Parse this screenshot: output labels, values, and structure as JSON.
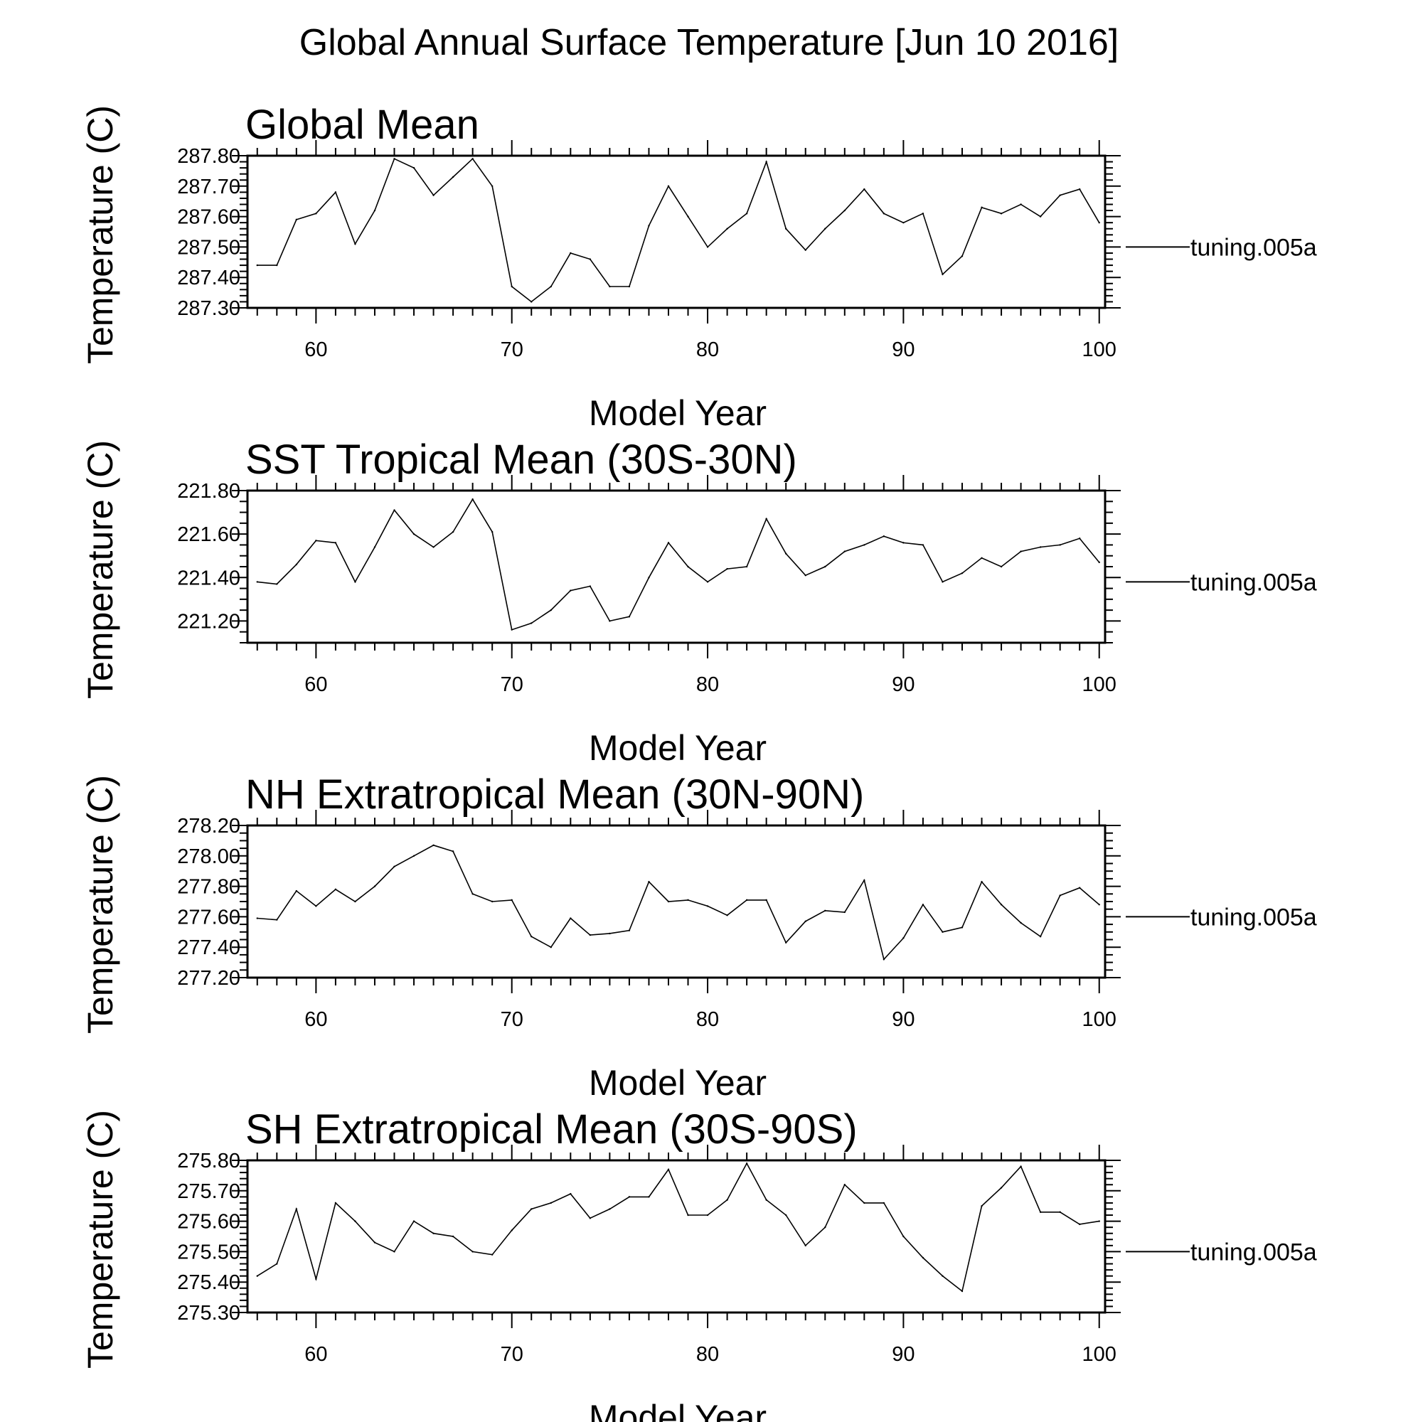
{
  "page_title": "Global Annual Surface Temperature [Jun 10 2016]",
  "chart_data": [
    {
      "type": "line",
      "title": "Global Mean",
      "xlabel": "Model Year",
      "ylabel": "Temperature (C)",
      "xlim": [
        56.5,
        100.3
      ],
      "ylim": [
        287.3,
        287.8
      ],
      "xticks": [
        60,
        70,
        80,
        90,
        100
      ],
      "yticks": [
        287.3,
        287.4,
        287.5,
        287.6,
        287.7,
        287.8
      ],
      "ytick_labels": [
        "287.30",
        "287.40",
        "287.50",
        "287.60",
        "287.70",
        "287.80"
      ],
      "legend_value": 287.5,
      "series": [
        {
          "name": "tuning.005a",
          "x": [
            57,
            58,
            59,
            60,
            61,
            62,
            63,
            64,
            65,
            66,
            67,
            68,
            69,
            70,
            71,
            72,
            73,
            74,
            75,
            76,
            77,
            78,
            79,
            80,
            81,
            82,
            83,
            84,
            85,
            86,
            87,
            88,
            89,
            90,
            91,
            92,
            93,
            94,
            95,
            96,
            97,
            98,
            99,
            100
          ],
          "values": [
            287.44,
            287.44,
            287.59,
            287.61,
            287.68,
            287.51,
            287.62,
            287.79,
            287.76,
            287.67,
            287.73,
            287.79,
            287.7,
            287.37,
            287.32,
            287.37,
            287.48,
            287.46,
            287.37,
            287.37,
            287.57,
            287.7,
            287.6,
            287.5,
            287.56,
            287.61,
            287.78,
            287.56,
            287.49,
            287.56,
            287.62,
            287.69,
            287.61,
            287.58,
            287.61,
            287.41,
            287.47,
            287.63,
            287.61,
            287.64,
            287.6,
            287.67,
            287.69,
            287.58
          ]
        }
      ]
    },
    {
      "type": "line",
      "title": "SST Tropical Mean (30S-30N)",
      "xlabel": "Model Year",
      "ylabel": "Temperature (C)",
      "xlim": [
        56.5,
        100.3
      ],
      "ylim": [
        221.1,
        221.8
      ],
      "xticks": [
        60,
        70,
        80,
        90,
        100
      ],
      "yticks": [
        221.2,
        221.4,
        221.6,
        221.8
      ],
      "ytick_labels": [
        "221.20",
        "221.40",
        "221.60",
        "221.80"
      ],
      "legend_value": 221.38,
      "series": [
        {
          "name": "tuning.005a",
          "x": [
            57,
            58,
            59,
            60,
            61,
            62,
            63,
            64,
            65,
            66,
            67,
            68,
            69,
            70,
            71,
            72,
            73,
            74,
            75,
            76,
            77,
            78,
            79,
            80,
            81,
            82,
            83,
            84,
            85,
            86,
            87,
            88,
            89,
            90,
            91,
            92,
            93,
            94,
            95,
            96,
            97,
            98,
            99,
            100
          ],
          "values": [
            221.38,
            221.37,
            221.46,
            221.57,
            221.56,
            221.38,
            221.54,
            221.71,
            221.6,
            221.54,
            221.61,
            221.76,
            221.61,
            221.16,
            221.19,
            221.25,
            221.34,
            221.36,
            221.2,
            221.22,
            221.4,
            221.56,
            221.45,
            221.38,
            221.44,
            221.45,
            221.67,
            221.51,
            221.41,
            221.45,
            221.52,
            221.55,
            221.59,
            221.56,
            221.55,
            221.38,
            221.42,
            221.49,
            221.45,
            221.52,
            221.54,
            221.55,
            221.58,
            221.47
          ]
        }
      ]
    },
    {
      "type": "line",
      "title": "NH Extratropical Mean (30N-90N)",
      "xlabel": "Model Year",
      "ylabel": "Temperature (C)",
      "xlim": [
        56.5,
        100.3
      ],
      "ylim": [
        277.2,
        278.2
      ],
      "xticks": [
        60,
        70,
        80,
        90,
        100
      ],
      "yticks": [
        277.2,
        277.4,
        277.6,
        277.8,
        278.0,
        278.2
      ],
      "ytick_labels": [
        "277.20",
        "277.40",
        "277.60",
        "277.80",
        "278.00",
        "278.20"
      ],
      "legend_value": 277.6,
      "series": [
        {
          "name": "tuning.005a",
          "x": [
            57,
            58,
            59,
            60,
            61,
            62,
            63,
            64,
            65,
            66,
            67,
            68,
            69,
            70,
            71,
            72,
            73,
            74,
            75,
            76,
            77,
            78,
            79,
            80,
            81,
            82,
            83,
            84,
            85,
            86,
            87,
            88,
            89,
            90,
            91,
            92,
            93,
            94,
            95,
            96,
            97,
            98,
            99,
            100
          ],
          "values": [
            277.59,
            277.58,
            277.77,
            277.67,
            277.78,
            277.7,
            277.8,
            277.93,
            278.0,
            278.07,
            278.03,
            277.75,
            277.7,
            277.71,
            277.47,
            277.4,
            277.59,
            277.48,
            277.49,
            277.51,
            277.83,
            277.7,
            277.71,
            277.67,
            277.61,
            277.71,
            277.71,
            277.43,
            277.57,
            277.64,
            277.63,
            277.84,
            277.32,
            277.46,
            277.68,
            277.5,
            277.53,
            277.83,
            277.68,
            277.56,
            277.47,
            277.74,
            277.79,
            277.68
          ]
        }
      ]
    },
    {
      "type": "line",
      "title": "SH Extratropical Mean (30S-90S)",
      "xlabel": "Model Year",
      "ylabel": "Temperature (C)",
      "xlim": [
        56.5,
        100.3
      ],
      "ylim": [
        275.3,
        275.8
      ],
      "xticks": [
        60,
        70,
        80,
        90,
        100
      ],
      "yticks": [
        275.3,
        275.4,
        275.5,
        275.6,
        275.7,
        275.8
      ],
      "ytick_labels": [
        "275.30",
        "275.40",
        "275.50",
        "275.60",
        "275.70",
        "275.80"
      ],
      "legend_value": 275.5,
      "series": [
        {
          "name": "tuning.005a",
          "x": [
            57,
            58,
            59,
            60,
            61,
            62,
            63,
            64,
            65,
            66,
            67,
            68,
            69,
            70,
            71,
            72,
            73,
            74,
            75,
            76,
            77,
            78,
            79,
            80,
            81,
            82,
            83,
            84,
            85,
            86,
            87,
            88,
            89,
            90,
            91,
            92,
            93,
            94,
            95,
            96,
            97,
            98,
            99,
            100
          ],
          "values": [
            275.42,
            275.46,
            275.64,
            275.41,
            275.66,
            275.6,
            275.53,
            275.5,
            275.6,
            275.56,
            275.55,
            275.5,
            275.49,
            275.57,
            275.64,
            275.66,
            275.69,
            275.61,
            275.64,
            275.68,
            275.68,
            275.77,
            275.62,
            275.62,
            275.67,
            275.79,
            275.67,
            275.62,
            275.52,
            275.58,
            275.72,
            275.66,
            275.66,
            275.55,
            275.48,
            275.42,
            275.37,
            275.65,
            275.71,
            275.78,
            275.63,
            275.63,
            275.59,
            275.6
          ]
        }
      ]
    }
  ]
}
